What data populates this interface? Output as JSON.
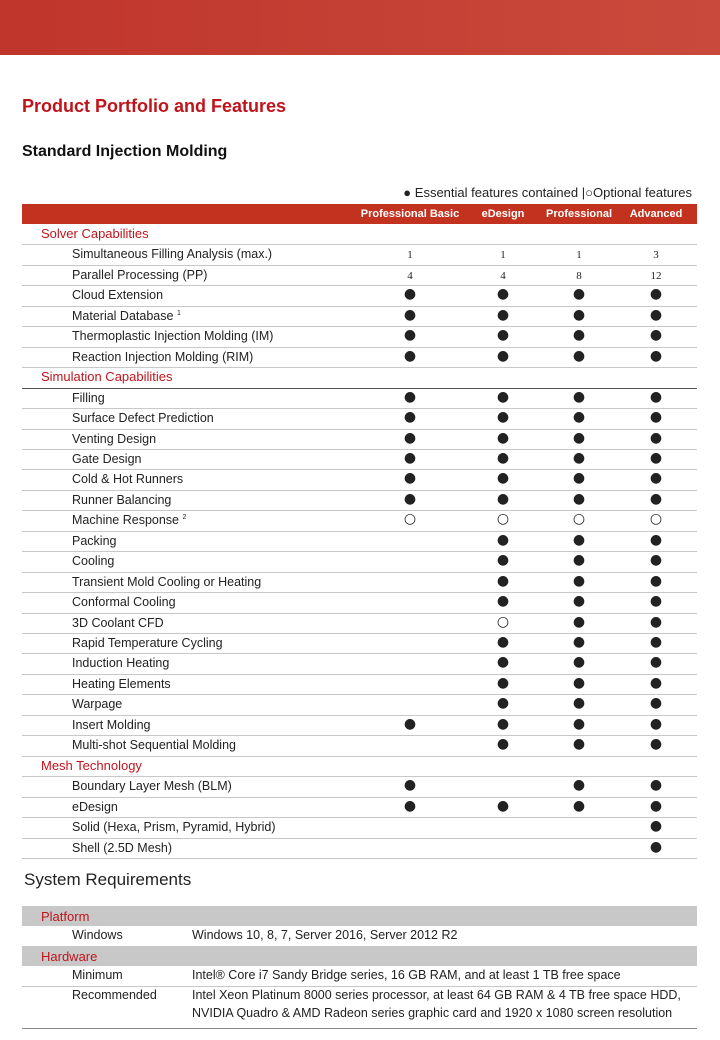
{
  "header": {
    "title": "Product Portfolio and Features",
    "subtitle": "Standard Injection Molding"
  },
  "legend": {
    "essential_symbol": "●",
    "essential": "Essential features contained",
    "separator": "|",
    "optional_symbol": "○",
    "optional": "Optional features"
  },
  "table": {
    "columns": [
      "Professional Basic",
      "eDesign",
      "Professional",
      "Advanced"
    ],
    "sections": [
      {
        "title": "Solver Capabilities",
        "rows": [
          {
            "label": "Simultaneous Filling Analysis (max.)",
            "cells": [
              1,
              1,
              1,
              3
            ]
          },
          {
            "label": "Parallel Processing (PP)",
            "cells": [
              4,
              4,
              8,
              12
            ]
          },
          {
            "label": "Cloud Extension",
            "cells": [
              "●",
              "●",
              "●",
              "●"
            ]
          },
          {
            "label": "Material Database",
            "sup": "1",
            "cells": [
              "●",
              "●",
              "●",
              "●"
            ]
          },
          {
            "label": "Thermoplastic Injection Molding (IM)",
            "cells": [
              "●",
              "●",
              "●",
              "●"
            ]
          },
          {
            "label": "Reaction Injection Molding (RIM)",
            "cells": [
              "●",
              "●",
              "●",
              "●"
            ]
          }
        ]
      },
      {
        "title": "Simulation Capabilities",
        "rows": [
          {
            "label": "Filling",
            "cells": [
              "●",
              "●",
              "●",
              "●"
            ]
          },
          {
            "label": "Surface Defect Prediction",
            "cells": [
              "●",
              "●",
              "●",
              "●"
            ]
          },
          {
            "label": "Venting Design",
            "cells": [
              "●",
              "●",
              "●",
              "●"
            ]
          },
          {
            "label": "Gate Design",
            "cells": [
              "●",
              "●",
              "●",
              "●"
            ]
          },
          {
            "label": "Cold & Hot Runners",
            "cells": [
              "●",
              "●",
              "●",
              "●"
            ]
          },
          {
            "label": "Runner Balancing",
            "cells": [
              "●",
              "●",
              "●",
              "●"
            ]
          },
          {
            "label": "Machine Response",
            "sup": "2",
            "cells": [
              "○",
              "○",
              "○",
              "○"
            ]
          },
          {
            "label": "Packing",
            "cells": [
              null,
              "●",
              "●",
              "●"
            ]
          },
          {
            "label": "Cooling",
            "cells": [
              null,
              "●",
              "●",
              "●"
            ]
          },
          {
            "label": "Transient Mold Cooling or Heating",
            "cells": [
              null,
              "●",
              "●",
              "●"
            ]
          },
          {
            "label": "Conformal Cooling",
            "cells": [
              null,
              "●",
              "●",
              "●"
            ]
          },
          {
            "label": "3D Coolant CFD",
            "cells": [
              null,
              "○",
              "●",
              "●"
            ]
          },
          {
            "label": "Rapid Temperature Cycling",
            "cells": [
              null,
              "●",
              "●",
              "●"
            ]
          },
          {
            "label": "Induction Heating",
            "cells": [
              null,
              "●",
              "●",
              "●"
            ]
          },
          {
            "label": "Heating Elements",
            "cells": [
              null,
              "●",
              "●",
              "●"
            ]
          },
          {
            "label": "Warpage",
            "cells": [
              null,
              "●",
              "●",
              "●"
            ]
          },
          {
            "label": "Insert Molding",
            "cells": [
              "●",
              "●",
              "●",
              "●"
            ]
          },
          {
            "label": "Multi-shot Sequential Molding",
            "cells": [
              null,
              "●",
              "●",
              "●"
            ]
          }
        ]
      },
      {
        "title": "Mesh Technology",
        "rows": [
          {
            "label": "Boundary Layer Mesh (BLM)",
            "cells": [
              "●",
              null,
              "●",
              "●"
            ]
          },
          {
            "label": "eDesign",
            "cells": [
              "●",
              "●",
              "●",
              "●"
            ]
          },
          {
            "label": "Solid (Hexa, Prism, Pyramid, Hybrid)",
            "cells": [
              null,
              null,
              null,
              "●"
            ]
          },
          {
            "label": "Shell (2.5D Mesh)",
            "cells": [
              null,
              null,
              null,
              "●"
            ]
          }
        ]
      }
    ]
  },
  "requirements": {
    "title": "System Requirements",
    "sections": [
      {
        "title": "Platform",
        "rows": [
          {
            "label": "Windows",
            "lines": [
              "Windows 10, 8, 7, Server 2016, Server 2012 R2"
            ]
          }
        ]
      },
      {
        "title": "Hardware",
        "rows": [
          {
            "label": "Minimum",
            "lines": [
              "Intel® Core i7 Sandy Bridge series, 16 GB RAM, and at least 1 TB free space"
            ]
          },
          {
            "label": "Recommended",
            "lines": [
              "Intel Xeon Platinum 8000 series processor, at least 64 GB RAM & 4 TB free space HDD,",
              "NVIDIA Quadro & AMD Radeon series graphic card and 1920 x 1080 screen resolution"
            ]
          }
        ]
      }
    ]
  }
}
